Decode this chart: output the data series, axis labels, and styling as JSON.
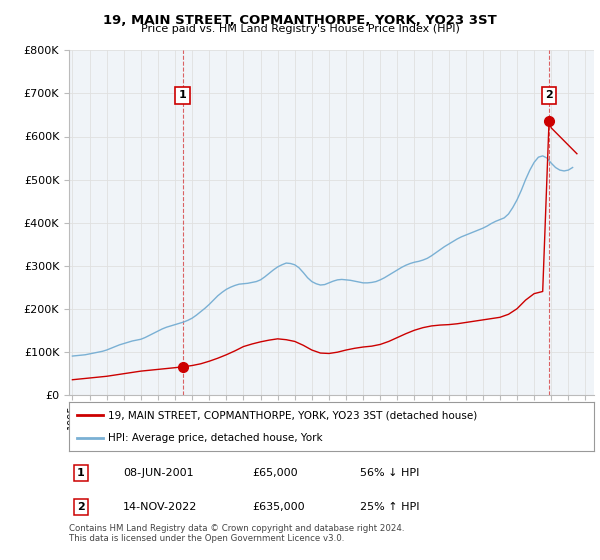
{
  "title": "19, MAIN STREET, COPMANTHORPE, YORK, YO23 3ST",
  "subtitle": "Price paid vs. HM Land Registry's House Price Index (HPI)",
  "xlim": [
    1994.8,
    2025.5
  ],
  "ylim": [
    0,
    800000
  ],
  "yticks": [
    0,
    100000,
    200000,
    300000,
    400000,
    500000,
    600000,
    700000,
    800000
  ],
  "ytick_labels": [
    "£0",
    "£100K",
    "£200K",
    "£300K",
    "£400K",
    "£500K",
    "£600K",
    "£700K",
    "£800K"
  ],
  "xticks": [
    1995,
    1996,
    1997,
    1998,
    1999,
    2000,
    2001,
    2002,
    2003,
    2004,
    2005,
    2006,
    2007,
    2008,
    2009,
    2010,
    2011,
    2012,
    2013,
    2014,
    2015,
    2016,
    2017,
    2018,
    2019,
    2020,
    2021,
    2022,
    2023,
    2024,
    2025
  ],
  "transaction1_x": 2001.44,
  "transaction1_y": 65000,
  "transaction1_label": "1",
  "transaction1_date": "08-JUN-2001",
  "transaction1_price": "£65,000",
  "transaction1_hpi": "56% ↓ HPI",
  "transaction2_x": 2022.87,
  "transaction2_y": 635000,
  "transaction2_label": "2",
  "transaction2_date": "14-NOV-2022",
  "transaction2_price": "£635,000",
  "transaction2_hpi": "25% ↑ HPI",
  "red_line_color": "#cc0000",
  "blue_line_color": "#7ab0d4",
  "grid_color": "#e0e0e0",
  "background_color": "#ffffff",
  "plot_bg_color": "#f0f4f8",
  "legend_entry1": "19, MAIN STREET, COPMANTHORPE, YORK, YO23 3ST (detached house)",
  "legend_entry2": "HPI: Average price, detached house, York",
  "footer1": "Contains HM Land Registry data © Crown copyright and database right 2024.",
  "footer2": "This data is licensed under the Open Government Licence v3.0.",
  "hpi_x": [
    1995.0,
    1995.25,
    1995.5,
    1995.75,
    1996.0,
    1996.25,
    1996.5,
    1996.75,
    1997.0,
    1997.25,
    1997.5,
    1997.75,
    1998.0,
    1998.25,
    1998.5,
    1998.75,
    1999.0,
    1999.25,
    1999.5,
    1999.75,
    2000.0,
    2000.25,
    2000.5,
    2000.75,
    2001.0,
    2001.25,
    2001.5,
    2001.75,
    2002.0,
    2002.25,
    2002.5,
    2002.75,
    2003.0,
    2003.25,
    2003.5,
    2003.75,
    2004.0,
    2004.25,
    2004.5,
    2004.75,
    2005.0,
    2005.25,
    2005.5,
    2005.75,
    2006.0,
    2006.25,
    2006.5,
    2006.75,
    2007.0,
    2007.25,
    2007.5,
    2007.75,
    2008.0,
    2008.25,
    2008.5,
    2008.75,
    2009.0,
    2009.25,
    2009.5,
    2009.75,
    2010.0,
    2010.25,
    2010.5,
    2010.75,
    2011.0,
    2011.25,
    2011.5,
    2011.75,
    2012.0,
    2012.25,
    2012.5,
    2012.75,
    2013.0,
    2013.25,
    2013.5,
    2013.75,
    2014.0,
    2014.25,
    2014.5,
    2014.75,
    2015.0,
    2015.25,
    2015.5,
    2015.75,
    2016.0,
    2016.25,
    2016.5,
    2016.75,
    2017.0,
    2017.25,
    2017.5,
    2017.75,
    2018.0,
    2018.25,
    2018.5,
    2018.75,
    2019.0,
    2019.25,
    2019.5,
    2019.75,
    2020.0,
    2020.25,
    2020.5,
    2020.75,
    2021.0,
    2021.25,
    2021.5,
    2021.75,
    2022.0,
    2022.25,
    2022.5,
    2022.75,
    2023.0,
    2023.25,
    2023.5,
    2023.75,
    2024.0,
    2024.25
  ],
  "hpi_y": [
    90000,
    91000,
    92000,
    93000,
    95000,
    97000,
    99000,
    101000,
    104000,
    108000,
    112000,
    116000,
    119000,
    122000,
    125000,
    127000,
    129000,
    133000,
    138000,
    143000,
    148000,
    153000,
    157000,
    160000,
    163000,
    166000,
    169000,
    173000,
    178000,
    185000,
    193000,
    201000,
    210000,
    220000,
    230000,
    238000,
    245000,
    250000,
    254000,
    257000,
    258000,
    259000,
    261000,
    263000,
    267000,
    274000,
    282000,
    290000,
    297000,
    302000,
    306000,
    305000,
    302000,
    295000,
    284000,
    272000,
    263000,
    258000,
    255000,
    256000,
    260000,
    264000,
    267000,
    268000,
    267000,
    266000,
    264000,
    262000,
    260000,
    260000,
    261000,
    263000,
    267000,
    272000,
    278000,
    284000,
    290000,
    296000,
    301000,
    305000,
    308000,
    310000,
    313000,
    317000,
    323000,
    330000,
    337000,
    344000,
    350000,
    356000,
    362000,
    367000,
    371000,
    375000,
    379000,
    383000,
    387000,
    392000,
    398000,
    403000,
    407000,
    411000,
    420000,
    435000,
    453000,
    475000,
    500000,
    522000,
    540000,
    552000,
    555000,
    550000,
    538000,
    528000,
    522000,
    520000,
    522000,
    528000
  ],
  "red_x": [
    1995.0,
    1995.5,
    1996.0,
    1996.5,
    1997.0,
    1997.5,
    1998.0,
    1998.5,
    1999.0,
    1999.5,
    2000.0,
    2000.5,
    2001.0,
    2001.44,
    2002.0,
    2002.5,
    2003.0,
    2003.5,
    2004.0,
    2004.5,
    2005.0,
    2005.5,
    2006.0,
    2006.5,
    2007.0,
    2007.5,
    2008.0,
    2008.5,
    2009.0,
    2009.5,
    2010.0,
    2010.5,
    2011.0,
    2011.5,
    2012.0,
    2012.5,
    2013.0,
    2013.5,
    2014.0,
    2014.5,
    2015.0,
    2015.5,
    2016.0,
    2016.5,
    2017.0,
    2017.5,
    2018.0,
    2018.5,
    2019.0,
    2019.5,
    2020.0,
    2020.5,
    2021.0,
    2021.5,
    2022.0,
    2022.5,
    2022.87,
    2023.0,
    2023.5,
    2024.0,
    2024.5
  ],
  "red_y": [
    35000,
    37000,
    39000,
    41000,
    43000,
    46000,
    49000,
    52000,
    55000,
    57000,
    59000,
    61000,
    63000,
    65000,
    68000,
    72000,
    78000,
    85000,
    93000,
    102000,
    112000,
    118000,
    123000,
    127000,
    130000,
    128000,
    124000,
    115000,
    104000,
    97000,
    96000,
    99000,
    104000,
    108000,
    111000,
    113000,
    117000,
    124000,
    133000,
    142000,
    150000,
    156000,
    160000,
    162000,
    163000,
    165000,
    168000,
    171000,
    174000,
    177000,
    180000,
    187000,
    200000,
    220000,
    235000,
    240000,
    635000,
    620000,
    600000,
    580000,
    560000
  ]
}
